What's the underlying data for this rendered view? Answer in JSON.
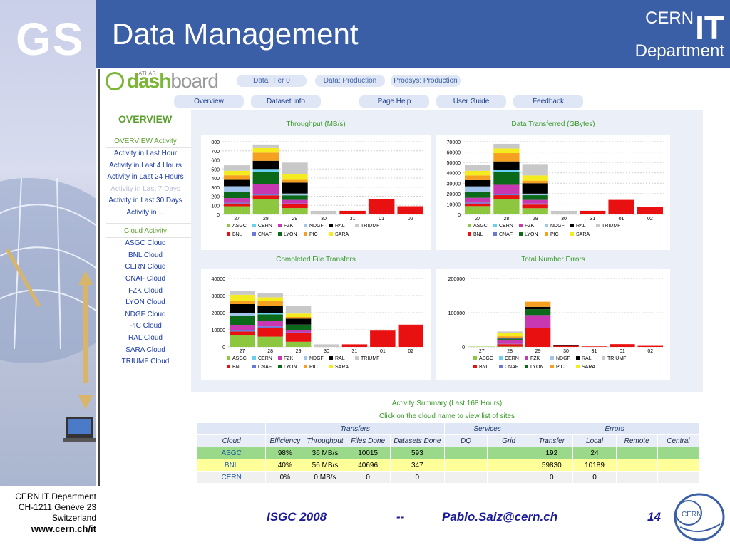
{
  "slide": {
    "logo": "GS",
    "title": "Data Management",
    "brand_cern": "CERN",
    "brand_it": "IT",
    "brand_dept": "Department"
  },
  "dashboard": {
    "logo_atlas": "ATLAS",
    "logo_dash": "dash",
    "logo_board": "board",
    "pills": [
      "Data: Tier 0",
      "Data: Production",
      "Prodsys: Production"
    ],
    "tabs": [
      "Overview",
      "Dataset Info",
      "Page Help",
      "User Guide",
      "Feedback"
    ]
  },
  "sidebar": {
    "header": "OVERVIEW",
    "activity_title": "OVERVIEW Activity",
    "activity_items": [
      "Activity in Last Hour",
      "Activity in Last 4 Hours",
      "Activity in Last 24 Hours",
      "Activity in Last 7 Days",
      "Activity in Last 30 Days",
      "Activity in ..."
    ],
    "cloud_title": "Cloud Activity",
    "cloud_items": [
      "ASGC Cloud",
      "BNL Cloud",
      "CERN Cloud",
      "CNAF Cloud",
      "FZK Cloud",
      "LYON Cloud",
      "NDGF Cloud",
      "PIC Cloud",
      "RAL Cloud",
      "SARA Cloud",
      "TRIUMF Cloud"
    ]
  },
  "colors": {
    "ASGC": "#8dc63f",
    "CERN": "#6ad0f0",
    "FZK": "#c838b0",
    "NDGF": "#a0c4ec",
    "RAL": "#000000",
    "TRIUMF": "#c8c8c8",
    "BNL": "#e81010",
    "CNAF": "#6a78d8",
    "LYON": "#0a6a1a",
    "PIC": "#f5a020",
    "SARA": "#f5ec20"
  },
  "chart_data": [
    {
      "type": "bar",
      "title": "Throughput (MB/s)",
      "categories": [
        "27",
        "28",
        "29",
        "30",
        "31",
        "01",
        "02"
      ],
      "ylim": [
        0,
        800
      ],
      "yticks": [
        "0",
        "100",
        "200",
        "300",
        "400",
        "500",
        "600",
        "700",
        "800"
      ],
      "legend": [
        "ASGC",
        "CERN",
        "FZK",
        "NDGF",
        "RAL",
        "TRIUMF",
        "BNL",
        "CNAF",
        "LYON",
        "PIC",
        "SARA"
      ],
      "series": [
        {
          "name": "ASGC",
          "values": [
            90,
            170,
            70,
            0,
            0,
            0,
            0
          ]
        },
        {
          "name": "BNL",
          "values": [
            30,
            40,
            40,
            0,
            40,
            170,
            90
          ]
        },
        {
          "name": "CNAF",
          "values": [
            10,
            10,
            10,
            0,
            0,
            0,
            0
          ]
        },
        {
          "name": "FZK",
          "values": [
            50,
            110,
            40,
            0,
            0,
            0,
            0
          ]
        },
        {
          "name": "LYON",
          "values": [
            70,
            140,
            50,
            0,
            0,
            0,
            0
          ]
        },
        {
          "name": "NDGF",
          "values": [
            60,
            0,
            20,
            0,
            0,
            0,
            0
          ]
        },
        {
          "name": "CERN",
          "values": [
            0,
            30,
            0,
            0,
            0,
            0,
            0
          ]
        },
        {
          "name": "RAL",
          "values": [
            70,
            90,
            120,
            0,
            0,
            0,
            0
          ]
        },
        {
          "name": "PIC",
          "values": [
            50,
            90,
            30,
            0,
            0,
            0,
            0
          ]
        },
        {
          "name": "SARA",
          "values": [
            50,
            50,
            60,
            0,
            0,
            0,
            0
          ]
        },
        {
          "name": "TRIUMF",
          "values": [
            60,
            40,
            130,
            40,
            0,
            0,
            0
          ]
        }
      ]
    },
    {
      "type": "bar",
      "title": "Data Transferred (GBytes)",
      "categories": [
        "27",
        "28",
        "29",
        "30",
        "31",
        "01",
        "02"
      ],
      "ylim": [
        0,
        70000
      ],
      "yticks": [
        "0",
        "10000",
        "20000",
        "30000",
        "40000",
        "50000",
        "60000",
        "70000"
      ],
      "legend": [
        "ASGC",
        "CERN",
        "FZK",
        "NDGF",
        "RAL",
        "TRIUMF",
        "BNL",
        "CNAF",
        "LYON",
        "PIC",
        "SARA"
      ],
      "series": [
        {
          "name": "ASGC",
          "values": [
            8000,
            15000,
            6000,
            0,
            0,
            0,
            0
          ]
        },
        {
          "name": "BNL",
          "values": [
            2500,
            3500,
            3500,
            0,
            3500,
            14000,
            7000
          ]
        },
        {
          "name": "CNAF",
          "values": [
            1000,
            1000,
            1000,
            0,
            0,
            0,
            0
          ]
        },
        {
          "name": "FZK",
          "values": [
            4500,
            9000,
            3500,
            0,
            0,
            0,
            0
          ]
        },
        {
          "name": "LYON",
          "values": [
            6000,
            12000,
            4500,
            0,
            0,
            0,
            0
          ]
        },
        {
          "name": "NDGF",
          "values": [
            5000,
            0,
            1500,
            0,
            0,
            0,
            0
          ]
        },
        {
          "name": "CERN",
          "values": [
            0,
            2500,
            0,
            0,
            0,
            0,
            0
          ]
        },
        {
          "name": "RAL",
          "values": [
            6000,
            8000,
            10000,
            0,
            0,
            0,
            0
          ]
        },
        {
          "name": "PIC",
          "values": [
            4500,
            8000,
            2500,
            0,
            0,
            0,
            0
          ]
        },
        {
          "name": "SARA",
          "values": [
            4500,
            4500,
            5000,
            0,
            0,
            0,
            0
          ]
        },
        {
          "name": "TRIUMF",
          "values": [
            5500,
            4500,
            11000,
            3500,
            0,
            0,
            0
          ]
        }
      ]
    },
    {
      "type": "bar",
      "title": "Completed File Transfers",
      "categories": [
        "27",
        "28",
        "29",
        "30",
        "31",
        "01",
        "02"
      ],
      "ylim": [
        0,
        40000
      ],
      "yticks": [
        "0",
        "10000",
        "20000",
        "30000",
        "40000"
      ],
      "legend": [
        "ASGC",
        "CERN",
        "FZK",
        "NDGF",
        "RAL",
        "TRIUMF",
        "BNL",
        "CNAF",
        "LYON",
        "PIC",
        "SARA"
      ],
      "series": [
        {
          "name": "ASGC",
          "values": [
            7000,
            6000,
            3000,
            0,
            0,
            0,
            0
          ]
        },
        {
          "name": "BNL",
          "values": [
            2000,
            5000,
            5000,
            0,
            1500,
            9500,
            13000
          ]
        },
        {
          "name": "CNAF",
          "values": [
            1000,
            1000,
            500,
            0,
            0,
            0,
            0
          ]
        },
        {
          "name": "FZK",
          "values": [
            2500,
            3000,
            1500,
            0,
            0,
            0,
            0
          ]
        },
        {
          "name": "LYON",
          "values": [
            5500,
            4000,
            2500,
            0,
            0,
            0,
            0
          ]
        },
        {
          "name": "NDGF",
          "values": [
            2000,
            0,
            500,
            0,
            0,
            0,
            0
          ]
        },
        {
          "name": "CERN",
          "values": [
            0,
            1000,
            0,
            0,
            0,
            0,
            0
          ]
        },
        {
          "name": "RAL",
          "values": [
            5000,
            4000,
            3500,
            0,
            0,
            0,
            0
          ]
        },
        {
          "name": "PIC",
          "values": [
            2000,
            3000,
            1000,
            0,
            0,
            0,
            0
          ]
        },
        {
          "name": "SARA",
          "values": [
            3500,
            2000,
            2000,
            0,
            0,
            0,
            0
          ]
        },
        {
          "name": "TRIUMF",
          "values": [
            2000,
            2500,
            4500,
            1500,
            0,
            0,
            0
          ]
        }
      ]
    },
    {
      "type": "bar",
      "title": "Total Number Errors",
      "categories": [
        "27",
        "28",
        "29",
        "30",
        "31",
        "01",
        "02"
      ],
      "ylim": [
        0,
        200000
      ],
      "yticks": [
        "0",
        "100000",
        "200000"
      ],
      "legend": [
        "ASGC",
        "CERN",
        "FZK",
        "NDGF",
        "RAL",
        "TRIUMF",
        "BNL",
        "CNAF",
        "LYON",
        "PIC",
        "SARA"
      ],
      "series": [
        {
          "name": "ASGC",
          "values": [
            1000,
            1000,
            0,
            0,
            0,
            0,
            0
          ]
        },
        {
          "name": "BNL",
          "values": [
            0,
            7000,
            55000,
            3000,
            1500,
            8000,
            3000
          ]
        },
        {
          "name": "CNAF",
          "values": [
            0,
            1000,
            0,
            0,
            0,
            0,
            0
          ]
        },
        {
          "name": "FZK",
          "values": [
            0,
            12000,
            38000,
            0,
            0,
            0,
            0
          ]
        },
        {
          "name": "LYON",
          "values": [
            0,
            2000,
            17000,
            0,
            0,
            0,
            0
          ]
        },
        {
          "name": "NDGF",
          "values": [
            0,
            1000,
            0,
            0,
            0,
            0,
            0
          ]
        },
        {
          "name": "CERN",
          "values": [
            0,
            0,
            0,
            0,
            0,
            0,
            0
          ]
        },
        {
          "name": "RAL",
          "values": [
            0,
            1000,
            7000,
            3000,
            0,
            0,
            0
          ]
        },
        {
          "name": "PIC",
          "values": [
            0,
            6000,
            15000,
            0,
            0,
            0,
            0
          ]
        },
        {
          "name": "SARA",
          "values": [
            0,
            9000,
            0,
            0,
            0,
            0,
            0
          ]
        },
        {
          "name": "TRIUMF",
          "values": [
            0,
            5000,
            0,
            0,
            0,
            0,
            0
          ]
        }
      ]
    }
  ],
  "summary": {
    "title": "Activity Summary (Last 168 Hours)",
    "subtitle": "Click on the cloud name to view list of sites",
    "group_headers": [
      "Transfers",
      "Services",
      "Errors"
    ],
    "columns": [
      "Cloud",
      "Efficiency",
      "Throughput",
      "Files Done",
      "Datasets Done",
      "DQ",
      "Grid",
      "Transfer",
      "Local",
      "Remote",
      "Central"
    ],
    "rows": [
      [
        "ASGC",
        "98%",
        "36 MB/s",
        "10015",
        "593",
        "",
        "",
        "192",
        "24",
        "",
        ""
      ],
      [
        "BNL",
        "40%",
        "56 MB/s",
        "40696",
        "347",
        "",
        "",
        "59830",
        "10189",
        "",
        ""
      ],
      [
        "CERN",
        "0%",
        "0 MB/s",
        "0",
        "0",
        "",
        "",
        "0",
        "0",
        "",
        ""
      ]
    ]
  },
  "footer": {
    "dept": "CERN IT Department",
    "addr": "CH-1211 Genève 23",
    "country": "Switzerland",
    "url": "www.cern.ch/it",
    "event": "ISGC 2008",
    "sep": "--",
    "email": "Pablo.Saiz@cern.ch",
    "page": "14"
  }
}
